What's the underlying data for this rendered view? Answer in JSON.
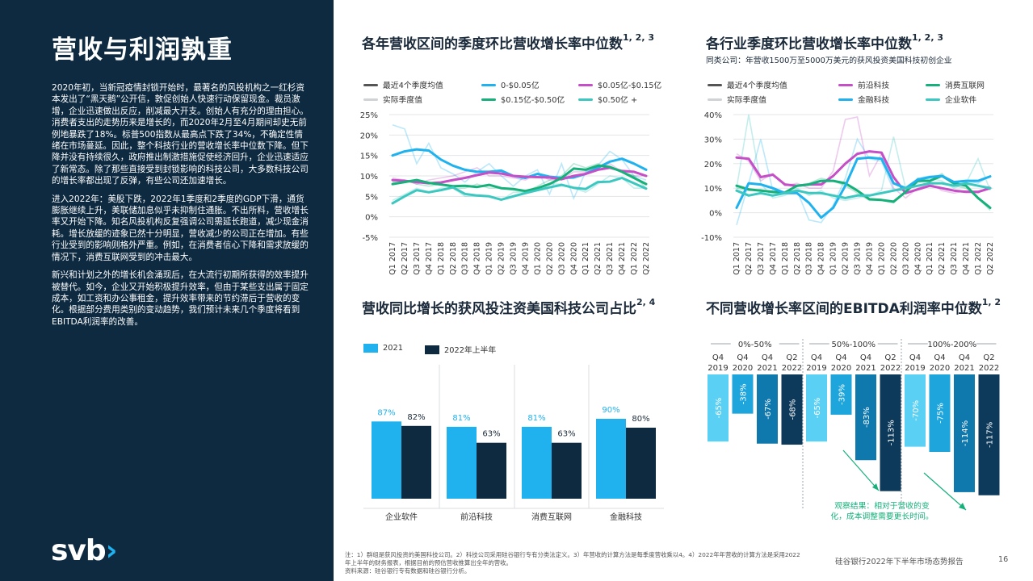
{
  "page": {
    "title": "营收与利润孰重",
    "paragraphs": [
      "2020年初，当新冠疫情封锁开始时，最著名的风投机构之一红杉资本发出了“黑天鹅”公开信，敦促创始人快速行动保留现金。裁员激增，企业迅速做出反应，削减最大开支。创始人有充分的理由担心。消费者支出的走势历来是增长的，而2020年2月至4月期间却史无前例地暴跌了18%。标普500指数从最高点下跌了34%，不确定性情绪在市场蔓延。因此，整个科技行业的营收增长率中位数下降。但下降并没有持续很久，政府推出制激措施促使经济回升，企业迅速适应了新常态。除了那些直接受到封锁影响的科技公司，大多数科技公司的增长率都出现了反弹，有些公司还加速增长。",
      "进入2022年：美股下跌，2022年1季度和2季度的GDP下滑，通货膨胀继续上升，美联储加息似乎未抑制住通胀。不出所料，营收增长率又开始下降。知名风投机构反复强调公司需延长跑道，减少现金消耗。增长放缓的迹象已然十分明显，营收减少的公司正在增加。有些行业受到的影响则格外严重。例如，在消费者信心下降和需求放缓的情况下，消费互联网受到的冲击最大。",
      "新兴和计划之外的增长机会涌现后，在大流行初期所获得的效率提升被替代。如今，企业又开始积极提升效率，但由于某些支出属于固定成本，如工资和办公事租金，提升效率带来的节约滞后于营收的变化。根据部分费用类别的变动趋势，我们预计未来几个季度将看到EBITDA利润率的改善。"
    ],
    "logo_text": "svb",
    "logo_chevron": "›",
    "footnote": "注：1）群组是获风投资的美国科技公司。2）科技公司采用硅谷银行专有分类法定义。3）年营收的计算方法是每季度营收乘以4。4）2022年年营收的计算方法是采用2022年上半年的财务报表，根据目前的预估营收推算出全年的营收。",
    "source": "资料来源：硅谷银行专有数据和硅谷银行分析。",
    "footer": "硅谷银行2022年下半年市场态势报告",
    "page_number": "16"
  },
  "colors": {
    "navy": "#0d2a40",
    "cyan": "#1fb2ef",
    "dark_bar": "#0d2a40",
    "ebitda_light": "#5ad0f5",
    "ebitda_mid": "#1ea5dc",
    "ebitda_blue": "#0f78ad",
    "ebitda_dark": "#0d3a5a",
    "green": "#16b07a",
    "magenta": "#c44fc6",
    "aqua": "#3cc8c0",
    "gray": "#555555",
    "lightgray": "#cfd3d6"
  },
  "chart_data": [
    {
      "id": "c1",
      "type": "line",
      "title": "各年营收区间的季度环比营收增长率中位数",
      "title_sup": "1, 2, 3",
      "legend_avg": "最近4个季度均值",
      "legend_actual": "实际季度值",
      "x": [
        "Q1 2017",
        "Q2 2017",
        "Q3 2017",
        "Q4 2017",
        "Q1 2018",
        "Q2 2018",
        "Q3 2018",
        "Q4 2018",
        "Q1 2019",
        "Q2 2019",
        "Q3 2019",
        "Q4 2019",
        "Q1 2020",
        "Q2 2020",
        "Q3 2020",
        "Q4 2020",
        "Q1 2021",
        "Q2 2021",
        "Q3 2021",
        "Q4 2021",
        "Q1 2022",
        "Q2 2022"
      ],
      "ylim": [
        -5,
        25
      ],
      "yticks": [
        "25%",
        "20%",
        "15%",
        "10%",
        "5%",
        "0%",
        "-5%"
      ],
      "series": [
        {
          "name": "0-$0.05亿",
          "color": "#1fb2ef",
          "avg": [
            15,
            16,
            16.5,
            16.2,
            14,
            12.5,
            11.5,
            11,
            11,
            11.3,
            10,
            9.5,
            10.5,
            9.8,
            9.5,
            9.6,
            10.5,
            12,
            13.5,
            14.2,
            13,
            11.5
          ],
          "actual": [
            22.5,
            21.5,
            13,
            18,
            12,
            10.5,
            8.5,
            11,
            13,
            10,
            7.5,
            10,
            11.5,
            5.5,
            13,
            4.5,
            11,
            12.5,
            16,
            14,
            10,
            9
          ]
        },
        {
          "name": "$0.05亿-$0.15亿",
          "color": "#c44fc6",
          "avg": [
            9,
            8.8,
            8.5,
            8.2,
            8.4,
            9,
            9.5,
            10.2,
            10.8,
            10.6,
            10,
            9.8,
            9.7,
            9.6,
            9.2,
            10,
            10.5,
            11.5,
            12,
            11.2,
            11,
            10
          ],
          "actual": [
            9.5,
            9,
            8,
            9,
            9.5,
            10,
            11,
            12,
            10,
            10,
            9.5,
            9,
            10.5,
            9,
            9,
            11,
            11,
            12,
            13,
            11,
            10,
            10
          ]
        },
        {
          "name": "$0.15亿-$0.50亿",
          "color": "#16b07a",
          "avg": [
            8,
            8.5,
            9,
            8.3,
            7.9,
            7.5,
            7.6,
            7.3,
            7.8,
            7,
            6.8,
            6.3,
            7,
            8,
            9.5,
            11.8,
            11.5,
            12.5,
            12.2,
            11,
            9.5,
            8
          ],
          "actual": [
            8.5,
            9,
            8,
            7.5,
            8,
            7,
            7,
            8,
            7,
            7,
            6.5,
            6,
            7.5,
            9,
            10,
            13,
            12,
            13,
            12,
            11,
            10,
            7
          ]
        },
        {
          "name": "$0.50亿 +",
          "color": "#3cc8c0",
          "avg": [
            3.3,
            5,
            6.5,
            6,
            6.5,
            7.2,
            5.6,
            5.2,
            5,
            4.2,
            5,
            5.8,
            6.5,
            7.2,
            7.8,
            7.1,
            6.8,
            8.5,
            8.6,
            9.5,
            8.2,
            6.9
          ],
          "actual": [
            4,
            5.5,
            7,
            6,
            7,
            7,
            5,
            5,
            5,
            4,
            6,
            6,
            7,
            8,
            8,
            7,
            6,
            8,
            10,
            9.5,
            7,
            7
          ]
        }
      ]
    },
    {
      "id": "c2",
      "type": "line",
      "title": "各行业季度环比营收增长率中位数",
      "title_sup": "1, 2, 3",
      "subtitle": "同类公司：年营收1500万至5000万美元的获风投资美国科技初创企业",
      "legend_avg": "最近4个季度均值",
      "legend_actual": "实际季度值",
      "x": [
        "Q1 2017",
        "Q2 2017",
        "Q3 2017",
        "Q4 2017",
        "Q1 2018",
        "Q2 2018",
        "Q3 2018",
        "Q4 2018",
        "Q1 2019",
        "Q2 2019",
        "Q3 2019",
        "Q4 2019",
        "Q1 2020",
        "Q2 2020",
        "Q3 2020",
        "Q4 2020",
        "Q1 2021",
        "Q2 2021",
        "Q3 2021",
        "Q4 2021",
        "Q1 2022",
        "Q2 2022"
      ],
      "ylim": [
        -10,
        40
      ],
      "yticks": [
        "40%",
        "30%",
        "20%",
        "10%",
        "0%",
        "-10%"
      ],
      "series": [
        {
          "name": "前沿科技",
          "color": "#c44fc6",
          "avg": [
            22.5,
            22,
            14.5,
            15.5,
            11.5,
            11,
            11.5,
            11.5,
            15,
            20,
            24,
            25,
            24.5,
            14.5,
            8,
            9.5,
            11,
            10,
            9,
            8.5,
            8.5,
            10
          ],
          "actual": [
            24,
            21,
            13,
            16,
            11,
            12,
            10,
            10,
            17,
            38,
            39,
            15,
            24,
            10,
            6,
            10,
            12,
            9,
            8,
            9,
            8,
            11
          ]
        },
        {
          "name": "消费互联网",
          "color": "#16b07a",
          "avg": [
            11,
            9.5,
            9,
            8.5,
            8.2,
            11,
            11.5,
            13,
            13,
            12,
            9,
            5.5,
            5.2,
            4.5,
            8.5,
            13,
            13,
            15,
            12,
            11,
            6,
            2
          ],
          "actual": [
            10,
            9,
            9.5,
            8,
            8,
            11,
            12,
            14,
            13,
            11,
            8,
            5,
            5,
            4,
            9,
            14,
            13,
            16,
            11,
            10,
            6,
            1
          ]
        },
        {
          "name": "金融科技",
          "color": "#1fb2ef",
          "avg": [
            2,
            12,
            11.5,
            10,
            8,
            8,
            4,
            -2,
            2,
            11,
            22,
            22.5,
            22,
            12,
            10,
            13.5,
            14.5,
            15,
            12.5,
            13,
            13,
            14.8
          ],
          "actual": [
            -5,
            12,
            30,
            9,
            8,
            9,
            -3,
            -4,
            3,
            14,
            30,
            22,
            21,
            9,
            9,
            14,
            15,
            15,
            12,
            13,
            12,
            15
          ]
        },
        {
          "name": "企业软件",
          "color": "#3cc8c0",
          "avg": [
            9,
            7,
            8,
            7,
            8,
            9,
            8,
            8,
            7,
            6,
            7,
            7,
            8,
            9,
            10,
            11,
            12,
            12,
            11,
            12,
            11,
            10
          ],
          "actual": [
            10,
            40,
            12,
            6,
            7,
            10,
            7,
            9,
            6,
            5,
            6,
            7,
            9,
            31,
            10,
            12,
            14,
            13,
            10,
            12,
            22,
            9
          ]
        }
      ],
      "legend_order": [
        "最近4个季度均值",
        "前沿科技",
        "消费互联网",
        "实际季度值",
        "金融科技",
        "企业软件"
      ]
    },
    {
      "id": "c3",
      "type": "bar",
      "title": "营收同比增长的获风投注资美国科技公司占比",
      "title_sup": "2, 4",
      "categories": [
        "企业软件",
        "前沿科技",
        "消费互联网",
        "金融科技"
      ],
      "series": [
        {
          "name": "2021",
          "color": "#1fb2ef",
          "values": [
            87,
            81,
            81,
            90
          ],
          "labels": [
            "87%",
            "81%",
            "81%",
            "90%"
          ]
        },
        {
          "name": "2022年上半年",
          "color": "#0d2a40",
          "values": [
            82,
            63,
            63,
            80
          ],
          "labels": [
            "82%",
            "63%",
            "63%",
            "80%"
          ]
        }
      ],
      "ylim": [
        0,
        100
      ]
    },
    {
      "id": "c4",
      "type": "bar",
      "title": "不同营收增长率区间的EBITDA利润率中位数",
      "title_sup": "1, 2",
      "groups": [
        {
          "name": "0%-50%",
          "periods": [
            "Q4 2019",
            "Q4 2020",
            "Q4 2021",
            "Q2 2022"
          ],
          "values": [
            -65,
            -38,
            -67,
            -68
          ],
          "labels": [
            "-65%",
            "-38%",
            "-67%",
            "-68%"
          ]
        },
        {
          "name": "50%-100%",
          "periods": [
            "Q4 2019",
            "Q4 2020",
            "Q4 2021",
            "Q2 2022"
          ],
          "values": [
            -65,
            -39,
            -83,
            -113
          ],
          "labels": [
            "-65%",
            "-39%",
            "-83%",
            "-113%"
          ]
        },
        {
          "name": "100%-200%",
          "periods": [
            "Q4 2019",
            "Q4 2020",
            "Q4 2021",
            "Q2 2022"
          ],
          "values": [
            -70,
            -75,
            -114,
            -117
          ],
          "labels": [
            "-70%",
            "-75%",
            "-114%",
            "-117%"
          ]
        }
      ],
      "period_labels": [
        [
          "Q4",
          "2019"
        ],
        [
          "Q4",
          "2020"
        ],
        [
          "Q4",
          "2021"
        ],
        [
          "Q2",
          "2022"
        ]
      ],
      "annotation": [
        "观察结果：相对于营收的变",
        "化，成本调整需要更长时间。"
      ],
      "ylim": [
        -125,
        0
      ]
    }
  ]
}
